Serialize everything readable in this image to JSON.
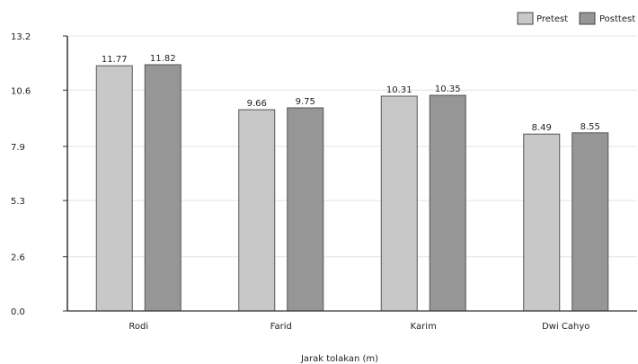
{
  "chart_data": {
    "type": "bar",
    "title": "",
    "xlabel": "Jarak tolakan (m)",
    "ylabel": "",
    "ylim": [
      0,
      13.2
    ],
    "yticks": [
      0.0,
      2.6,
      5.3,
      7.9,
      10.6,
      13.2
    ],
    "ytick_labels": [
      "0.0",
      "2.6",
      "5.3",
      "7.9",
      "10.6",
      "13.2"
    ],
    "categories": [
      "Rodi",
      "Farid",
      "Karim",
      "Dwi Cahyo"
    ],
    "series": [
      {
        "name": "Pretest",
        "values": [
          11.77,
          9.66,
          10.31,
          8.49
        ],
        "labels": [
          "11.77",
          "9.66",
          "10.31",
          "8.49"
        ],
        "color": "#c8c8c8"
      },
      {
        "name": "Posttest",
        "values": [
          11.82,
          9.75,
          10.35,
          8.55
        ],
        "labels": [
          "11.82",
          "9.75",
          "10.35",
          "8.55"
        ],
        "color": "#969696"
      }
    ],
    "grid": true,
    "legend": "top-right"
  }
}
